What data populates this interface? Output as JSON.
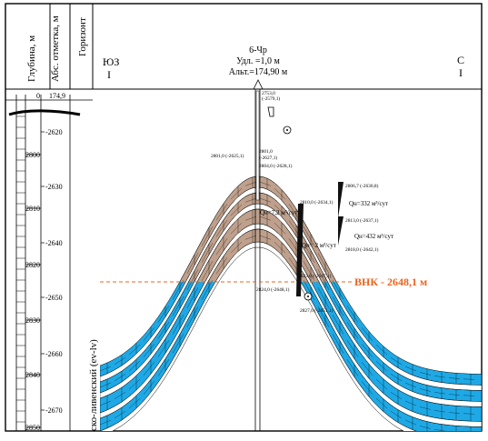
{
  "header": {
    "col_depth": "Глубина, м",
    "col_abs": "Абс. отметка, м",
    "col_horizon": "Горизонт"
  },
  "directions": {
    "left_top": "ЮЗ",
    "left_bottom": "I",
    "right_top": "С",
    "right_bottom": "I"
  },
  "well": {
    "name": "6-Чр",
    "udl": "Удл. =1,0 м",
    "alt": "Альт.=174,90 м"
  },
  "depth_scale": {
    "top_depth": "0",
    "top_abs": "174,9",
    "depth_ticks": [
      "2800",
      "2810",
      "2820",
      "2830",
      "2840",
      "2850"
    ],
    "abs_ticks": [
      "-2620",
      "-2630",
      "-2640",
      "-2650",
      "-2660",
      "-2670"
    ]
  },
  "contact": {
    "label": "ВНК - 2648,1 м",
    "color": "#e8641e"
  },
  "formation_label": "ско-ливенский (ev-lv)",
  "well_annotations": {
    "a1": "2753,0",
    "a2": "(-2579,1)",
    "a3": "2801,0 (-2625,1)",
    "a4": "2801,0",
    "a5": "(-2627,1)",
    "a6": "2804,0 (-2628,1)",
    "a7": "2810,0 (-2634,1)",
    "a8": "2806,7 (-2630,8)",
    "a9": "2813,0 (-2637,1)",
    "a10": "2818,0 (-2642,1)",
    "a11": "2824,0 (-2648,1)",
    "a12": "2823,0 (-2647,1)",
    "a13": "2827,0 (-2651,1)"
  },
  "test_results": {
    "q1": "Qн=332 м³/сут",
    "q2": "Qн=432 м³/сут",
    "q3": "Qн= 2 м³/сут",
    "q4": "Qн=7,2 м³/сут"
  },
  "colors": {
    "oil": "#bfa08c",
    "water": "#1ea9e6",
    "line": "#000000",
    "gap": "#ffffff"
  }
}
